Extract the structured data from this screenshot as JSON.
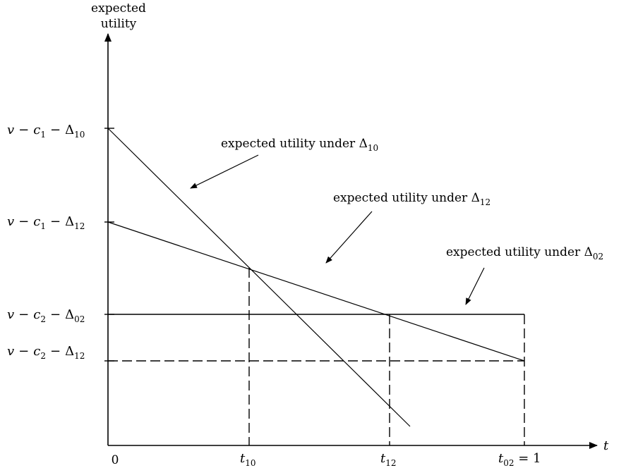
{
  "y_axis_title": [
    "expected",
    "utility"
  ],
  "x_axis_var": "t",
  "origin_label": "0",
  "y_ticks": [
    {
      "v": "v",
      "c": "c",
      "c_sub": "1",
      "d_sub": "10"
    },
    {
      "v": "v",
      "c": "c",
      "c_sub": "1",
      "d_sub": "12"
    },
    {
      "v": "v",
      "c": "c",
      "c_sub": "2",
      "d_sub": "02"
    },
    {
      "v": "v",
      "c": "c",
      "c_sub": "2",
      "d_sub": "12"
    }
  ],
  "x_ticks": [
    {
      "t": "t",
      "sub": "10",
      "suffix": ""
    },
    {
      "t": "t",
      "sub": "12",
      "suffix": ""
    },
    {
      "t": "t",
      "sub": "02",
      "suffix": " = 1"
    }
  ],
  "annotations": [
    {
      "text": "expected utility under ",
      "delta": "Δ",
      "sub": "10"
    },
    {
      "text": "expected utility under ",
      "delta": "Δ",
      "sub": "12"
    },
    {
      "text": "expected utility under ",
      "delta": "Δ",
      "sub": "02"
    }
  ],
  "minus": "−",
  "delta": "Δ"
}
